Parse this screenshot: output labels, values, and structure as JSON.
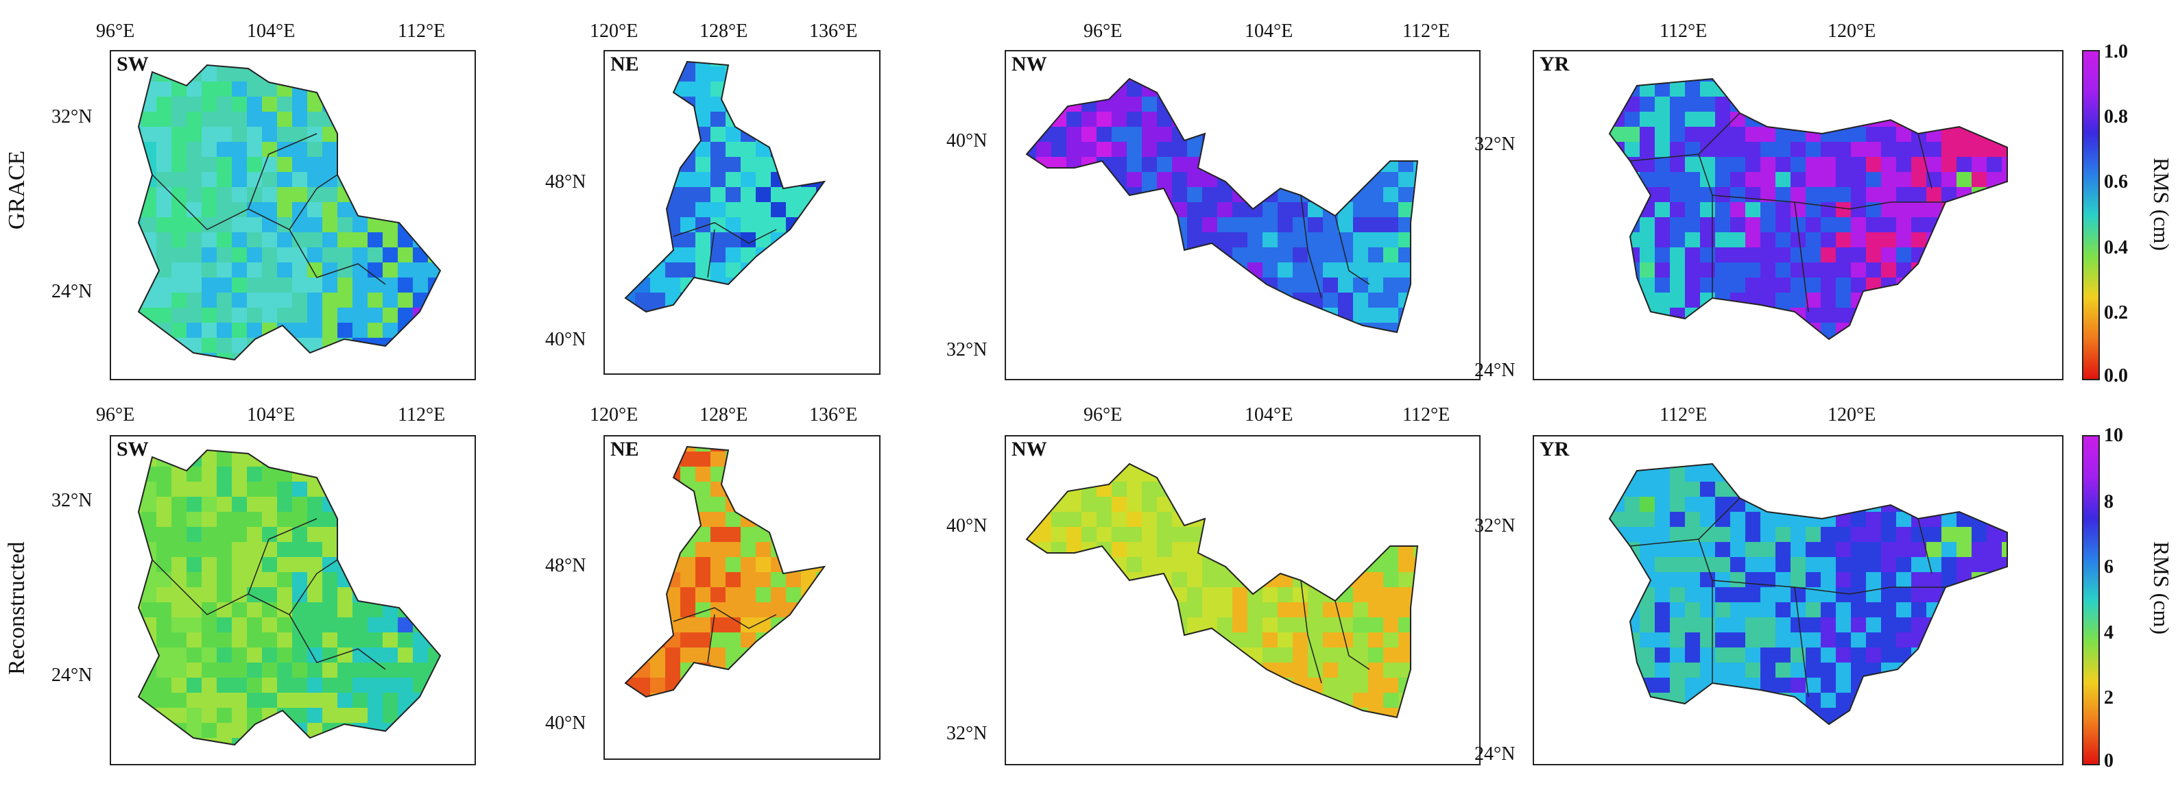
{
  "rows": [
    {
      "label": "GRACE",
      "colorbar": {
        "title": "RMS (cm)",
        "ticks": [
          "1.0",
          "0.8",
          "0.6",
          "0.4",
          "0.2",
          "0.0"
        ]
      }
    },
    {
      "label": "Reconstructed",
      "colorbar": {
        "title": "RMS (cm)",
        "ticks": [
          "10",
          "8",
          "6",
          "4",
          "2",
          "0"
        ]
      }
    }
  ],
  "panels": [
    {
      "region": "SW",
      "row": 0,
      "lon_ticks": [
        "96°E",
        "104°E",
        "112°E"
      ],
      "lat_ticks": [
        "32°N",
        "24°N"
      ],
      "dominant": "cyan-green",
      "palette": [
        "#2ad1c9",
        "#3fe08a",
        "#52d8d0",
        "#4ad1b0",
        "#2ab6e6",
        "#7be04a",
        "#1a5fe8",
        "#a020f0"
      ]
    },
    {
      "region": "NE",
      "row": 0,
      "lon_ticks": [
        "120°E",
        "128°E",
        "136°E"
      ],
      "lat_ticks": [
        "48°N",
        "40°N"
      ],
      "dominant": "blue-cyan",
      "palette": [
        "#1e7ee8",
        "#2a5ee0",
        "#26c4e8",
        "#3ae0c4",
        "#1a3fd6",
        "#5be06a"
      ]
    },
    {
      "region": "NW",
      "row": 0,
      "lon_ticks": [
        "96°E",
        "104°E",
        "112°E"
      ],
      "lat_ticks": [
        "40°N",
        "32°N"
      ],
      "dominant": "magenta-blue-cyan",
      "palette": [
        "#c81ee8",
        "#8a1ee8",
        "#3a3ae0",
        "#2a6ee8",
        "#2ac4e0",
        "#3ae0a0"
      ]
    },
    {
      "region": "YR",
      "row": 0,
      "lon_ticks": [
        "112°E",
        "120°E"
      ],
      "lat_ticks": [
        "32°N",
        "24°N"
      ],
      "dominant": "green-blue-magenta",
      "palette": [
        "#4ae08a",
        "#2ad0c8",
        "#2a5ee8",
        "#5a2ae8",
        "#b01ee8",
        "#e0188a",
        "#6ae04a"
      ]
    },
    {
      "region": "SW",
      "row": 1,
      "lon_ticks": [
        "96°E",
        "104°E",
        "112°E"
      ],
      "lat_ticks": [
        "32°N",
        "24°N"
      ],
      "dominant": "green",
      "palette": [
        "#7be04a",
        "#5ed84a",
        "#9ee040",
        "#3ad070",
        "#26c8c0",
        "#2a5ee8"
      ]
    },
    {
      "region": "NE",
      "row": 1,
      "lon_ticks": [
        "120°E",
        "128°E",
        "136°E"
      ],
      "lat_ticks": [
        "48°N",
        "40°N"
      ],
      "dominant": "orange",
      "palette": [
        "#f07a1e",
        "#e8501a",
        "#f0a020",
        "#7ee04a",
        "#f0c020",
        "#40d070"
      ]
    },
    {
      "region": "NW",
      "row": 1,
      "lon_ticks": [
        "96°E",
        "104°E",
        "112°E"
      ],
      "lat_ticks": [
        "40°N",
        "32°N"
      ],
      "dominant": "yellow-green",
      "palette": [
        "#e8d020",
        "#c8e030",
        "#a0e040",
        "#f0b420",
        "#7ee04a"
      ]
    },
    {
      "region": "YR",
      "row": 1,
      "lon_ticks": [
        "112°E",
        "120°E"
      ],
      "lat_ticks": [
        "32°N",
        "24°N"
      ],
      "dominant": "green-blue",
      "palette": [
        "#5ed84a",
        "#40c8a0",
        "#26b8e8",
        "#2a3ee0",
        "#5a2ae8",
        "#7ee04a"
      ]
    }
  ],
  "colormap": [
    "#e0140e",
    "#f07a1e",
    "#f0d020",
    "#7ee04a",
    "#2ad0c8",
    "#2a7ee8",
    "#3a2ae0",
    "#a020f0",
    "#c81ee8"
  ]
}
